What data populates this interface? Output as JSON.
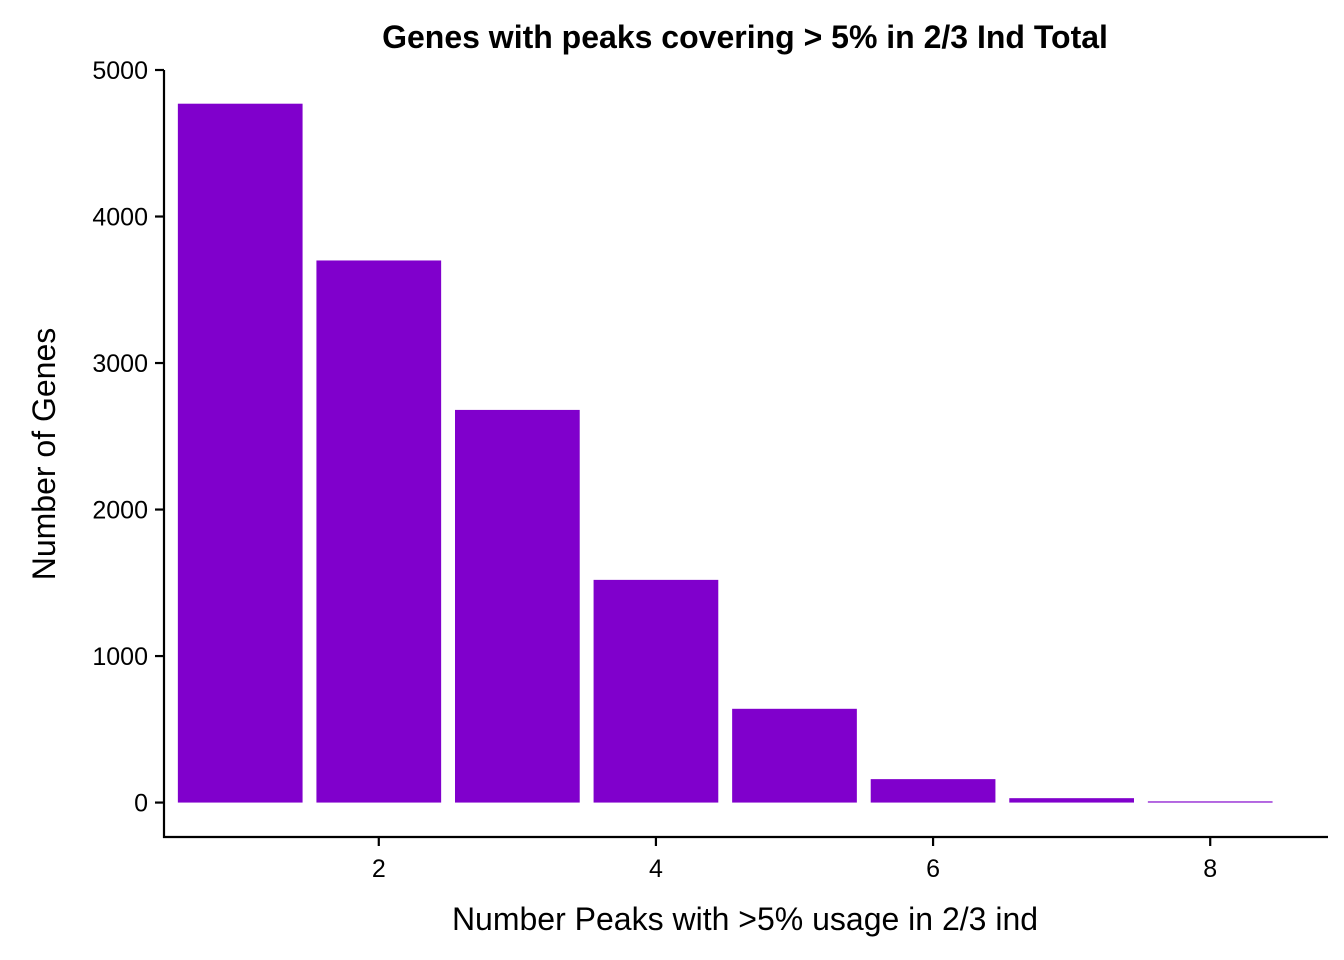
{
  "chart_data": {
    "type": "bar",
    "title": "Genes with peaks covering > 5% in 2/3 Ind Total",
    "xlabel": "Number Peaks with >5% usage in 2/3 ind",
    "ylabel": "Number of Genes",
    "x": [
      1,
      2,
      3,
      4,
      5,
      6,
      7,
      8
    ],
    "values": [
      4770,
      3700,
      2680,
      1520,
      640,
      160,
      30,
      8
    ],
    "xlim": [
      0.45,
      8.85
    ],
    "ylim": [
      -235,
      5000
    ],
    "x_ticks": [
      2,
      4,
      6,
      8
    ],
    "x_tick_labels": [
      "2",
      "4",
      "6",
      "8"
    ],
    "y_ticks": [
      0,
      1000,
      2000,
      3000,
      4000,
      5000
    ],
    "y_tick_labels": [
      "0",
      "1000",
      "2000",
      "3000",
      "4000",
      "5000"
    ],
    "bar_color": "#8000CC",
    "grid": false,
    "legend": "none"
  }
}
